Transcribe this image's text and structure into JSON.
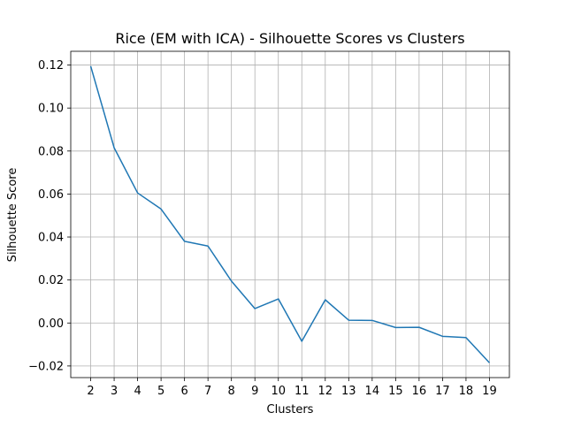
{
  "chart_data": {
    "type": "line",
    "title": "Rice (EM with ICA) - Silhouette Scores vs Clusters",
    "xlabel": "Clusters",
    "ylabel": "Silhouette Score",
    "x": [
      2,
      3,
      4,
      5,
      6,
      7,
      8,
      9,
      10,
      11,
      12,
      13,
      14,
      15,
      16,
      17,
      18,
      19
    ],
    "series": [
      {
        "values": [
          0.1195,
          0.0815,
          0.0605,
          0.053,
          0.038,
          0.0358,
          0.0195,
          0.0067,
          0.0112,
          -0.0085,
          0.0108,
          0.0013,
          0.0012,
          -0.0021,
          -0.002,
          -0.0062,
          -0.0068,
          -0.0185
        ],
        "color": "#1f77b4"
      }
    ],
    "xlim": [
      1.15,
      19.85
    ],
    "ylim": [
      -0.0254,
      0.1264
    ],
    "x_ticks": [
      2,
      3,
      4,
      5,
      6,
      7,
      8,
      9,
      10,
      11,
      12,
      13,
      14,
      15,
      16,
      17,
      18,
      19
    ],
    "y_ticks": [
      -0.02,
      0.0,
      0.02,
      0.04,
      0.06,
      0.08,
      0.1,
      0.12
    ],
    "y_tick_labels": [
      "−0.02",
      "0.00",
      "0.02",
      "0.04",
      "0.06",
      "0.08",
      "0.10",
      "0.12"
    ],
    "grid": true,
    "grid_color": "#b0b0b0",
    "legend": "none"
  }
}
